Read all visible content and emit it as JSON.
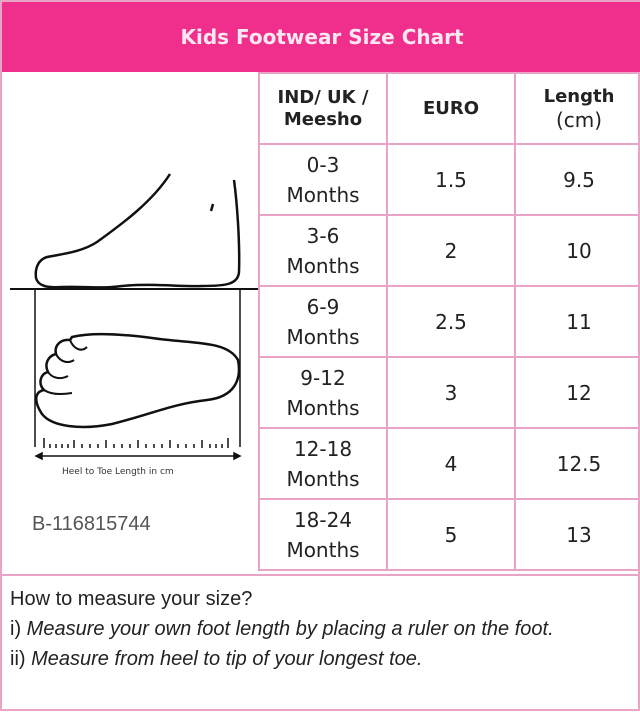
{
  "title": "Kids Footwear Size Chart",
  "illustration": {
    "caption": "Heel to Toe Length in cm"
  },
  "table": {
    "headers": {
      "size": "IND/ UK / Meesho",
      "euro": "EURO",
      "length": "Length",
      "length_unit": "(cm)"
    },
    "rows": [
      {
        "size": "0-3 Months",
        "euro": "1.5",
        "length": "9.5"
      },
      {
        "size": "3-6 Months",
        "euro": "2",
        "length": "10"
      },
      {
        "size": "6-9 Months",
        "euro": "2.5",
        "length": "11"
      },
      {
        "size": "9-12 Months",
        "euro": "3",
        "length": "12"
      },
      {
        "size": "12-18 Months",
        "euro": "4",
        "length": "12.5"
      },
      {
        "size": "18-24 Months",
        "euro": "5",
        "length": "13"
      }
    ]
  },
  "instructions": {
    "heading": "How to measure your size?",
    "step1_prefix": "i) ",
    "step1": "Measure your own foot length by placing a ruler on the foot.",
    "step2_prefix": "ii) ",
    "step2": "Measure from heel to tip of your longest toe."
  },
  "watermark": "B-116815744",
  "colors": {
    "header_bg": "#ef2f8b",
    "border": "#e9a3c6"
  }
}
